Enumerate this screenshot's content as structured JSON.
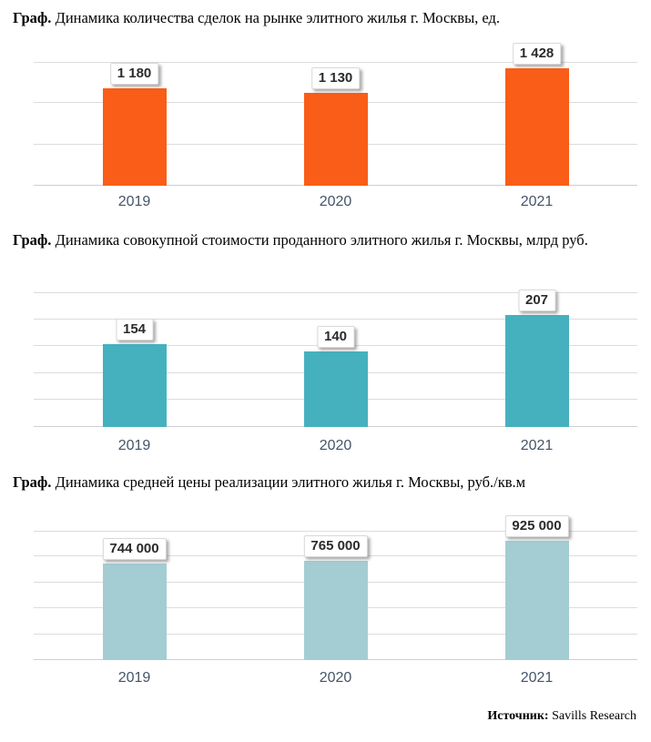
{
  "source": {
    "label": "Источник:",
    "text": "Savills Research"
  },
  "chart_data": [
    {
      "type": "bar",
      "title_prefix": "Граф.",
      "title": "Динамика количества сделок на рынке элитного жилья г. Москвы, ед.",
      "categories": [
        "2019",
        "2020",
        "2021"
      ],
      "values": [
        1180,
        1130,
        1428
      ],
      "value_labels": [
        "1 180",
        "1 130",
        "1 428"
      ],
      "bar_color": "#F95D17",
      "ylim": [
        0,
        1500
      ],
      "grid_step": 500,
      "grid": true,
      "legend": "none",
      "xlabel": "",
      "ylabel": ""
    },
    {
      "type": "bar",
      "title_prefix": "Граф.",
      "title": "Динамика совокупной стоимости проданного элитного жилья г. Москвы, млрд руб.",
      "categories": [
        "2019",
        "2020",
        "2021"
      ],
      "values": [
        154,
        140,
        207
      ],
      "value_labels": [
        "154",
        "140",
        "207"
      ],
      "bar_color": "#45B1BE",
      "ylim": [
        0,
        250
      ],
      "grid_step": 50,
      "grid": true,
      "legend": "none",
      "xlabel": "",
      "ylabel": ""
    },
    {
      "type": "bar",
      "title_prefix": "Граф.",
      "title": "Динамика средней цены реализации элитного жилья г. Москвы, руб./кв.м",
      "categories": [
        "2019",
        "2020",
        "2021"
      ],
      "values": [
        744000,
        765000,
        925000
      ],
      "value_labels": [
        "744 000",
        "765 000",
        "925 000"
      ],
      "bar_color": "#A3CDD3",
      "ylim": [
        0,
        1000000
      ],
      "grid_step": 200000,
      "grid": true,
      "legend": "none",
      "xlabel": "",
      "ylabel": ""
    }
  ]
}
